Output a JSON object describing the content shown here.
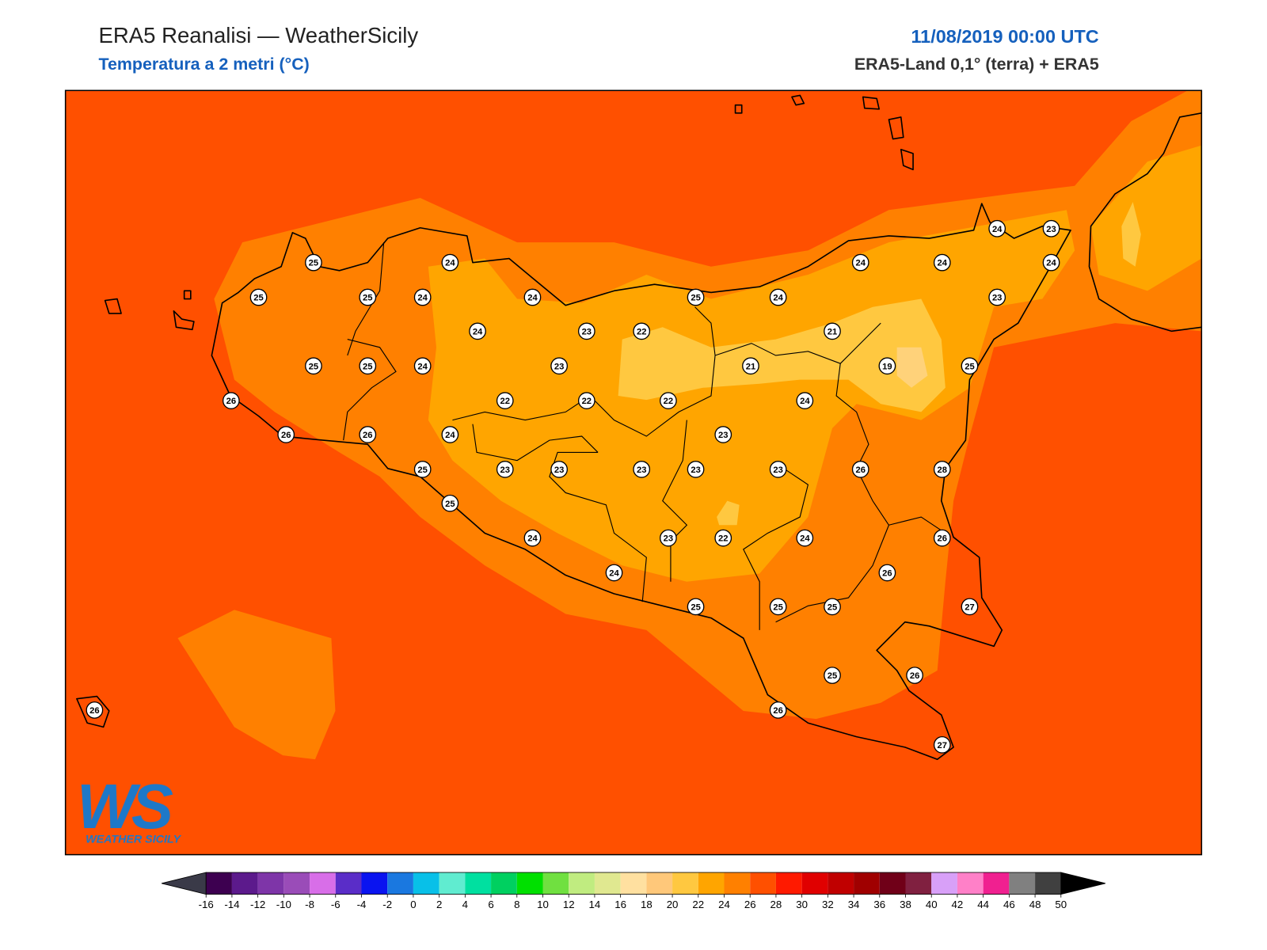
{
  "header": {
    "title": "ERA5 Reanalisi — WeatherSicily",
    "subtitle": "Temperatura a 2 metri (°C)",
    "datetime": "11/08/2019 00:00 UTC",
    "source": "ERA5-Land 0,1° (terra) + ERA5"
  },
  "logo": {
    "mark": "WS",
    "text": "WEATHER SICILY"
  },
  "stations": [
    25,
    24,
    25,
    25,
    24,
    24,
    25,
    24,
    24,
    24,
    24,
    23,
    24,
    23,
    24,
    23,
    22,
    21,
    25,
    25,
    24,
    23,
    21,
    19,
    25,
    26,
    22,
    22,
    22,
    24,
    26,
    26,
    24,
    23,
    25,
    23,
    23,
    23,
    23,
    23,
    26,
    28,
    25,
    24,
    23,
    22,
    24,
    26,
    24,
    26,
    25,
    25,
    25,
    27,
    25,
    26,
    26,
    26,
    27
  ],
  "colorbar": {
    "ticks": [
      -16,
      -14,
      -12,
      -10,
      -8,
      -6,
      -4,
      -2,
      0,
      2,
      4,
      6,
      8,
      10,
      12,
      14,
      16,
      18,
      20,
      22,
      24,
      26,
      28,
      30,
      32,
      34,
      36,
      38,
      40,
      42,
      44,
      46,
      48,
      50
    ],
    "colors": [
      "#3d0050",
      "#5c1a8c",
      "#7e35a8",
      "#9a4cb8",
      "#d86ee8",
      "#5a2dc8",
      "#0a14f0",
      "#1a78e0",
      "#08c0e8",
      "#60ecd0",
      "#00e0a0",
      "#00d060",
      "#00e000",
      "#70e040",
      "#c0ec80",
      "#e0e890",
      "#ffe0a0",
      "#ffc87a",
      "#ffc840",
      "#ffa500",
      "#ff8000",
      "#ff5000",
      "#ff1a00",
      "#e00000",
      "#c00000",
      "#a00000",
      "#700018",
      "#802040",
      "#d8a0f8",
      "#ff80c8",
      "#f02090",
      "#808080",
      "#404040"
    ],
    "under_color": "#3a3a48",
    "over_color": "#000000"
  }
}
